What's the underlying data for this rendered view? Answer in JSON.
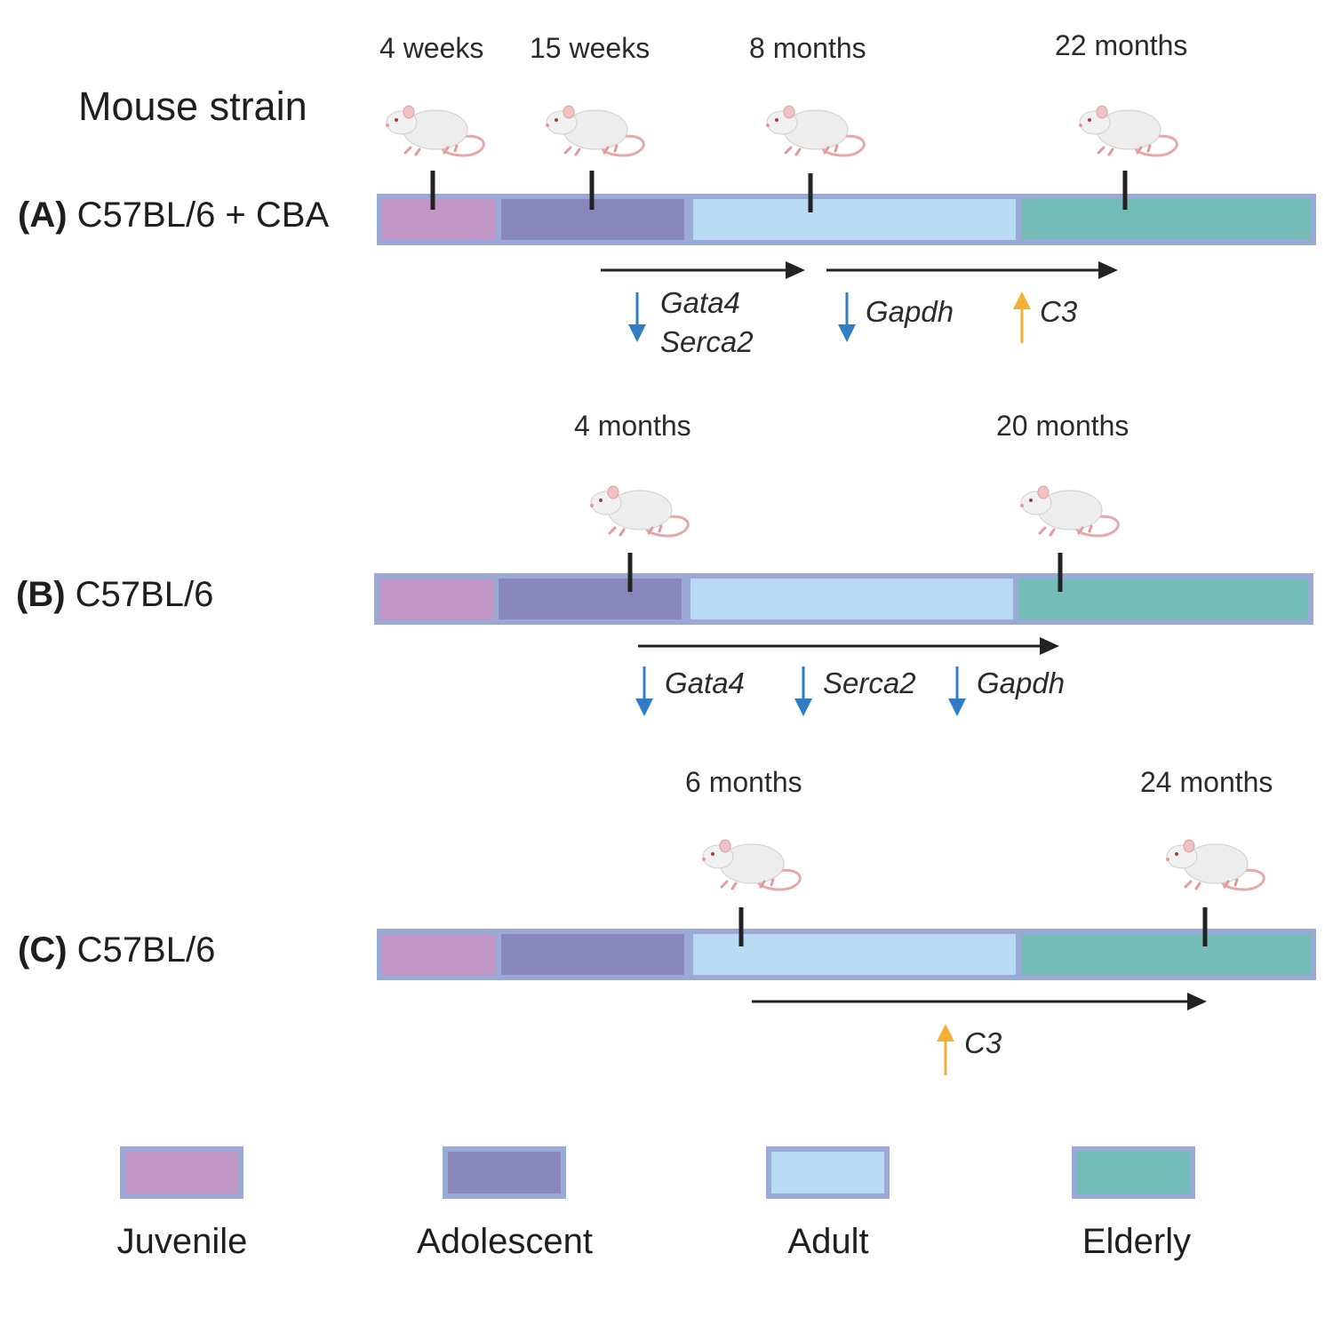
{
  "title": "Mouse strain",
  "colors": {
    "juvenile": "#c296c5",
    "adolescent": "#8986bb",
    "adult": "#b8daf3",
    "elderly": "#74bdb6",
    "bar_border": "#9aa9d6",
    "down_arrow": "#2f7dc4",
    "up_arrow": "#f2b035"
  },
  "panels": [
    {
      "letter": "(A)",
      "strain": "C57BL/6 + CBA",
      "timepoints": [
        "4 weeks",
        "15 weeks",
        "8 months",
        "22 months"
      ],
      "genes": [
        {
          "name": "Gata4",
          "direction": "down"
        },
        {
          "name": "Serca2",
          "direction": "down"
        },
        {
          "name": "Gapdh",
          "direction": "down"
        },
        {
          "name": "C3",
          "direction": "up"
        }
      ]
    },
    {
      "letter": "(B)",
      "strain": "C57BL/6",
      "timepoints": [
        "4 months",
        "20 months"
      ],
      "genes": [
        {
          "name": "Gata4",
          "direction": "down"
        },
        {
          "name": "Serca2",
          "direction": "down"
        },
        {
          "name": "Gapdh",
          "direction": "down"
        }
      ]
    },
    {
      "letter": "(C)",
      "strain": "C57BL/6",
      "timepoints": [
        "6 months",
        "24 months"
      ],
      "genes": [
        {
          "name": "C3",
          "direction": "up"
        }
      ]
    }
  ],
  "legend": [
    "Juvenile",
    "Adolescent",
    "Adult",
    "Elderly"
  ]
}
